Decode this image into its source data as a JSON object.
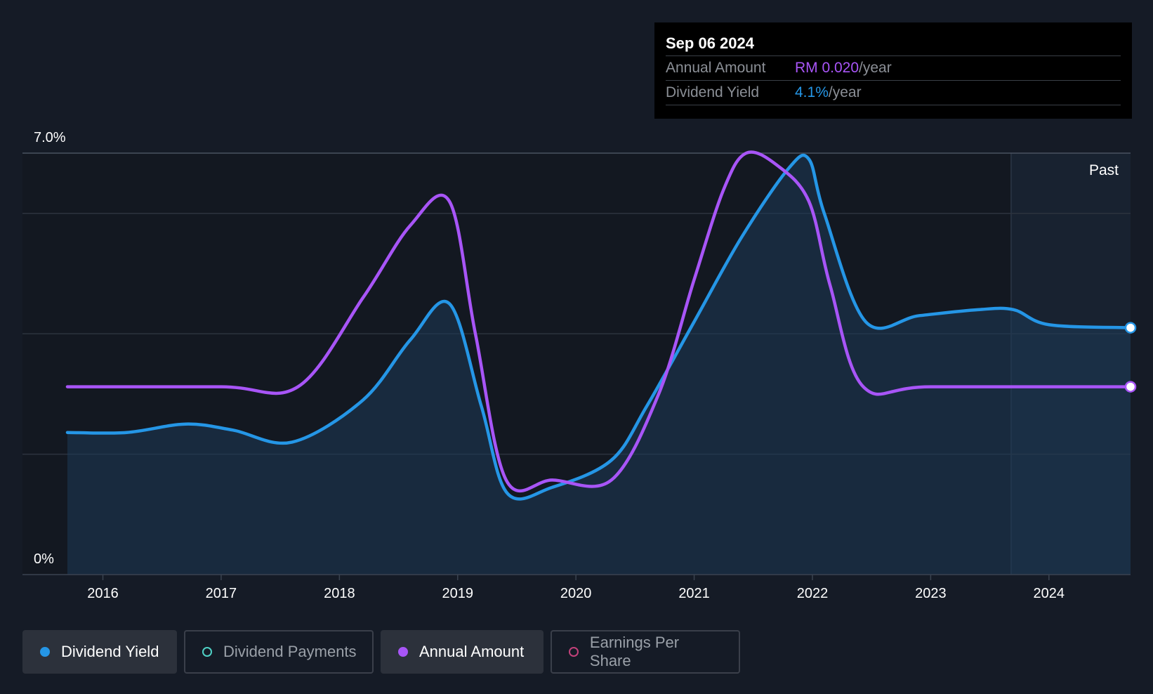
{
  "tooltip": {
    "date": "Sep 06 2024",
    "rows": [
      {
        "label": "Annual Amount",
        "value": "RM 0.020",
        "unit": "/year"
      },
      {
        "label": "Dividend Yield",
        "value": "4.1%",
        "unit": "/year"
      }
    ]
  },
  "past_label": "Past",
  "legend": [
    {
      "label": "Dividend Yield",
      "active": true,
      "color": "#2596e6"
    },
    {
      "label": "Dividend Payments",
      "active": false,
      "color": "#4fd1c5"
    },
    {
      "label": "Annual Amount",
      "active": true,
      "color": "#a855f7"
    },
    {
      "label": "Earnings Per Share",
      "active": false,
      "color": "#c2417a"
    }
  ],
  "chart_data": {
    "type": "line",
    "y_tick_labels": [
      "7.0%",
      "0%"
    ],
    "ylim": [
      0,
      7.0
    ],
    "x_tick_labels": [
      "2016",
      "2017",
      "2018",
      "2019",
      "2020",
      "2021",
      "2022",
      "2023",
      "2024"
    ],
    "xlim": [
      2015.7,
      2024.69
    ],
    "past_start": 2023.68,
    "grid": true,
    "colors": {
      "dividend_yield": "#2596e6",
      "annual_amount": "#a855f7"
    },
    "series": [
      {
        "name": "Dividend Yield",
        "x": [
          2015.7,
          2016.2,
          2016.7,
          2017.1,
          2017.6,
          2018.2,
          2018.6,
          2018.93,
          2019.2,
          2019.42,
          2019.8,
          2020.3,
          2020.6,
          2021.0,
          2021.4,
          2021.8,
          2021.97,
          2022.1,
          2022.45,
          2022.9,
          2023.4,
          2023.7,
          2024.0,
          2024.69
        ],
        "values": [
          2.36,
          2.36,
          2.5,
          2.4,
          2.2,
          2.9,
          3.9,
          4.5,
          2.8,
          1.35,
          1.45,
          1.9,
          2.8,
          4.2,
          5.6,
          6.75,
          6.9,
          6.0,
          4.2,
          4.3,
          4.4,
          4.4,
          4.15,
          4.1
        ]
      },
      {
        "name": "Annual Amount",
        "x": [
          2015.7,
          2017.0,
          2017.65,
          2018.2,
          2018.6,
          2018.93,
          2019.15,
          2019.41,
          2019.8,
          2020.3,
          2020.7,
          2021.0,
          2021.25,
          2021.44,
          2021.7,
          2021.97,
          2022.15,
          2022.43,
          2023.0,
          2024.69
        ],
        "values": [
          3.12,
          3.12,
          3.12,
          4.6,
          5.8,
          6.2,
          4.0,
          1.57,
          1.57,
          1.57,
          3.0,
          4.9,
          6.4,
          7.0,
          6.8,
          6.2,
          4.8,
          3.12,
          3.12,
          3.12
        ]
      }
    ]
  }
}
